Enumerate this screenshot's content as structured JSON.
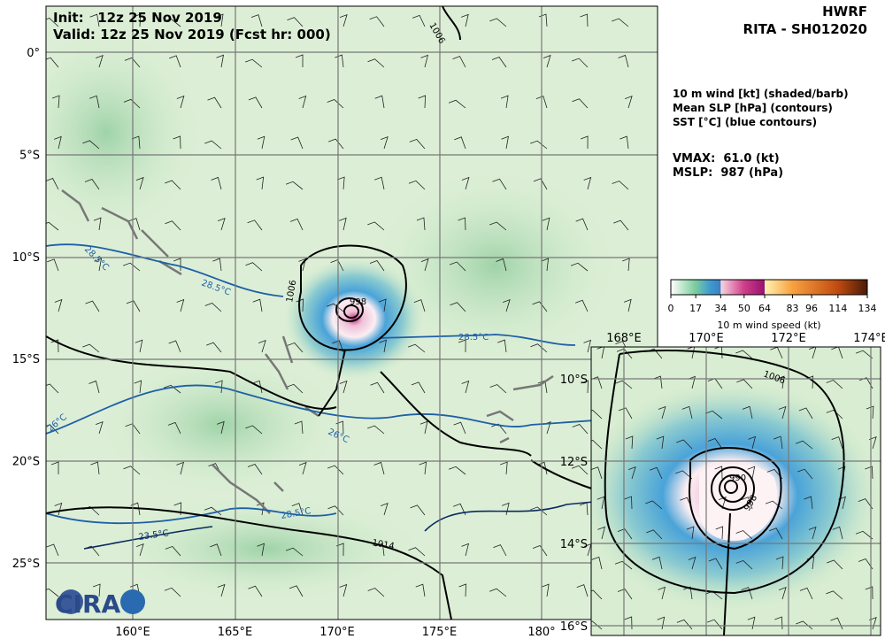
{
  "header": {
    "init": "Init:   12z 25 Nov 2019",
    "valid": "Valid: 12z 25 Nov 2019 (Fcst hr: 000)",
    "model": "HWRF",
    "storm": "RITA - SH012020"
  },
  "legend": [
    "10 m wind [kt] (shaded/barb)",
    "Mean SLP [hPa] (contours)",
    "SST [°C] (blue contours)"
  ],
  "stats": {
    "vmax": "VMAX:  61.0 (kt)",
    "mslp": "MSLP:  987 (hPa)"
  },
  "colorbar": {
    "label": "10 m wind speed (kt)",
    "range": [
      0,
      134
    ],
    "ticks": [
      0,
      17,
      34,
      50,
      64,
      83,
      96,
      114,
      134
    ]
  },
  "main_map": {
    "lat_labels": [
      "0°",
      "5°S",
      "10°S",
      "15°S",
      "20°S",
      "25°S"
    ],
    "lon_labels": [
      "160°E",
      "165°E",
      "170°E",
      "175°E",
      "180°"
    ],
    "contour_labels": [
      "1006",
      "1006",
      "998",
      "28.5°C",
      "28.5°C",
      "28.5°C",
      "28.5°C",
      "26°C",
      "26°C",
      "23.5°C",
      "1014"
    ]
  },
  "inset_map": {
    "lon_labels": [
      "168°E",
      "170°E",
      "172°E",
      "174°E"
    ],
    "lat_labels": [
      "10°S",
      "12°S",
      "14°S",
      "16°S"
    ],
    "contour_labels": [
      "1006",
      "990",
      "998"
    ]
  },
  "logo": "CIRA"
}
